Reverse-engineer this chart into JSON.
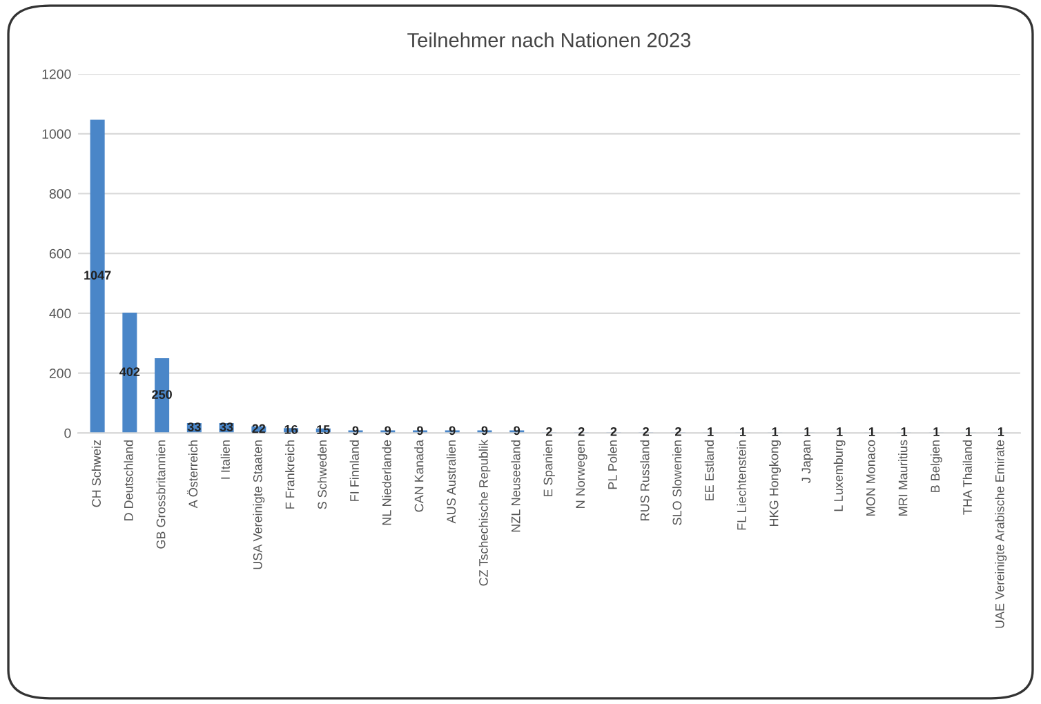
{
  "chart_data": {
    "type": "bar",
    "title": "Teilnehmer nach Nationen 2023",
    "categories": [
      "CH Schweiz",
      "D Deutschland",
      "GB Grossbritannien",
      "A Österreich",
      "I Italien",
      "USA Vereinigte Staaten",
      "F Frankreich",
      "S Schweden",
      "FI Finnland",
      "NL Niederlande",
      "CAN Kanada",
      "AUS Australien",
      "CZ Tschechische Republik",
      "NZL Neuseeland",
      "E Spanien",
      "N Norwegen",
      "PL Polen",
      "RUS Russland",
      "SLO Slowenien",
      "EE Estland",
      "FL Liechtenstein",
      "HKG Hongkong",
      "J Japan",
      "L Luxemburg",
      "MON Monaco",
      "MRI Mauritius",
      "B Belgien",
      "THA Thailand",
      "UAE Vereinigte Arabische Emirate"
    ],
    "values": [
      1047,
      402,
      250,
      33,
      33,
      22,
      16,
      15,
      9,
      9,
      9,
      9,
      9,
      9,
      2,
      2,
      2,
      2,
      2,
      1,
      1,
      1,
      1,
      1,
      1,
      1,
      1,
      1,
      1
    ],
    "color": "#4a86c8",
    "ylim": [
      0,
      1200
    ],
    "yticks": [
      0,
      200,
      400,
      600,
      800,
      1000,
      1200
    ],
    "grid": "y",
    "data_labels": true
  }
}
